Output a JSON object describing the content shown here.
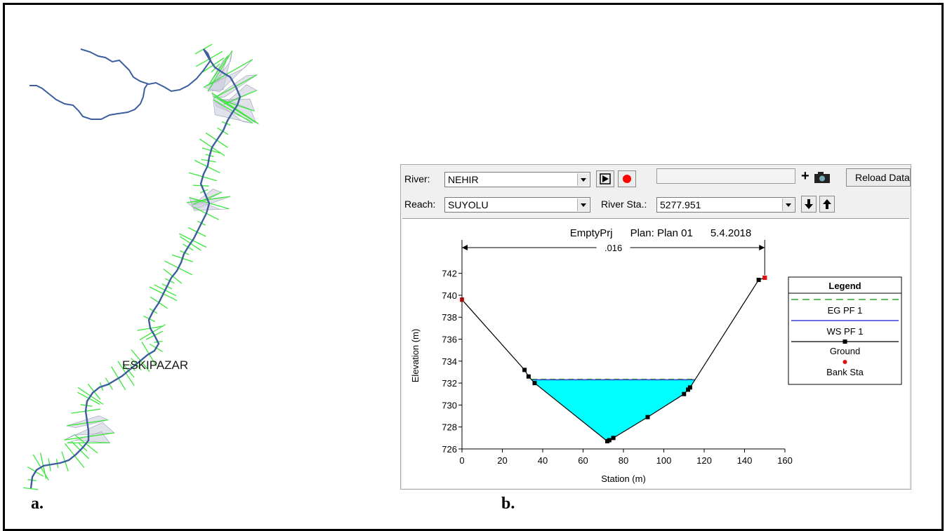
{
  "figure": {
    "panel_a_label": "a.",
    "panel_b_label": "b."
  },
  "map": {
    "town_label": "ESKIPAZAR",
    "colors": {
      "river": "#3c5e9e",
      "cross_sections": "#39e839",
      "floodplain": "#c8c8d8"
    }
  },
  "toolbar": {
    "river_label": "River:",
    "river_value": "NEHIR",
    "reach_label": "Reach:",
    "reach_value": "SUYOLU",
    "river_sta_label": "River Sta.:",
    "river_sta_value": "5277.951",
    "reload_label": "Reload Data",
    "plus_label": "+",
    "icons": [
      "play-icon",
      "record-icon",
      "camera-icon",
      "arrow-down-icon",
      "arrow-up-icon"
    ]
  },
  "chart_data": {
    "type": "line",
    "title": "EmptyPrj      Plan: Plan 01      5.4.2018",
    "xlabel": "Station (m)",
    "ylabel": "Elevation (m)",
    "xlim": [
      0,
      160
    ],
    "ylim": [
      726,
      743
    ],
    "xticks": [
      0,
      20,
      40,
      60,
      80,
      100,
      120,
      140,
      160
    ],
    "yticks": [
      726,
      728,
      730,
      732,
      734,
      736,
      738,
      740,
      742
    ],
    "grid": false,
    "manning_label": ".016",
    "manning_span": [
      0,
      150
    ],
    "water_surface": 732.3,
    "ground": {
      "x": [
        0,
        31,
        33,
        36,
        72,
        73,
        75,
        92,
        110,
        112,
        113,
        147,
        150
      ],
      "y": [
        739.6,
        733.2,
        732.6,
        732.0,
        726.7,
        726.8,
        727.0,
        728.9,
        731.0,
        731.4,
        731.6,
        741.4,
        741.6
      ]
    },
    "bank_stations": {
      "x": [
        0,
        150
      ],
      "y": [
        739.6,
        741.6
      ]
    },
    "legend": {
      "title": "Legend",
      "placement": "right",
      "entries": [
        {
          "name": "EG PF 1",
          "color": "#2ea82e",
          "style": "dashed"
        },
        {
          "name": "WS PF 1",
          "color": "#3b3bd6",
          "style": "solid"
        },
        {
          "name": "Ground",
          "color": "#000000",
          "style": "line-square"
        },
        {
          "name": "Bank Sta",
          "color": "#e01010",
          "style": "dot"
        }
      ]
    },
    "colors": {
      "water_fill": "#00ffff",
      "ground": "#000000",
      "bank": "#e01010",
      "ws_line": "#3b3bd6"
    }
  }
}
